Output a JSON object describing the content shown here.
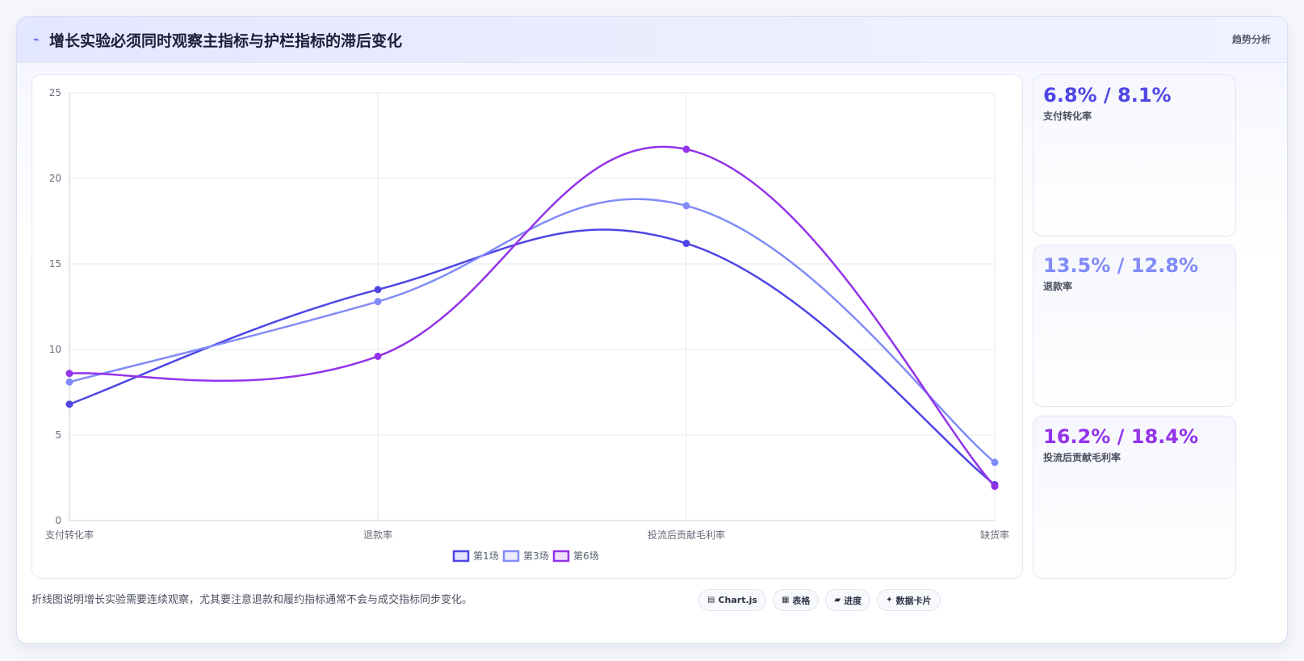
{
  "header": {
    "title": "增长实验必须同时观察主指标与护栏指标的滞后变化",
    "tag": "趋势分析",
    "icon": "trend-icon"
  },
  "chart_data": {
    "type": "line",
    "categories": [
      "支付转化率",
      "退款率",
      "投流后贡献毛利率",
      "缺货率"
    ],
    "series": [
      {
        "name": "第1场",
        "values": [
          6.8,
          13.5,
          16.2,
          2.1
        ],
        "color": "#4f46e5"
      },
      {
        "name": "第3场",
        "values": [
          8.1,
          12.8,
          18.4,
          3.4
        ],
        "color": "#818cf8"
      },
      {
        "name": "第6场",
        "values": [
          8.6,
          9.6,
          21.7,
          2.0
        ],
        "color": "#9333ea"
      }
    ],
    "ylim": [
      0,
      25
    ],
    "yticks": [
      0,
      5,
      10,
      15,
      20,
      25
    ],
    "title": "",
    "xlabel": "",
    "ylabel": "",
    "grid": true,
    "legend": "bottom"
  },
  "stats": [
    {
      "value": "6.8% / 8.1%",
      "label": "支付转化率",
      "color": "#4f46e5"
    },
    {
      "value": "13.5% / 12.8%",
      "label": "退款率",
      "color": "#818cf8"
    },
    {
      "value": "16.2% / 18.4%",
      "label": "投流后贡献毛利率",
      "color": "#9333ea"
    }
  ],
  "footer": {
    "note": "折线图说明增长实验需要连续观察，尤其要注意退款和履约指标通常不会与成交指标同步变化。",
    "buttons": [
      {
        "label": "Chart.js",
        "icon": "chart-icon",
        "glyph": "▤"
      },
      {
        "label": "表格",
        "icon": "table-icon",
        "glyph": "▦"
      },
      {
        "label": "进度",
        "icon": "progress-icon",
        "glyph": "▰"
      },
      {
        "label": "数据卡片",
        "icon": "card-icon",
        "glyph": "✦"
      }
    ]
  }
}
